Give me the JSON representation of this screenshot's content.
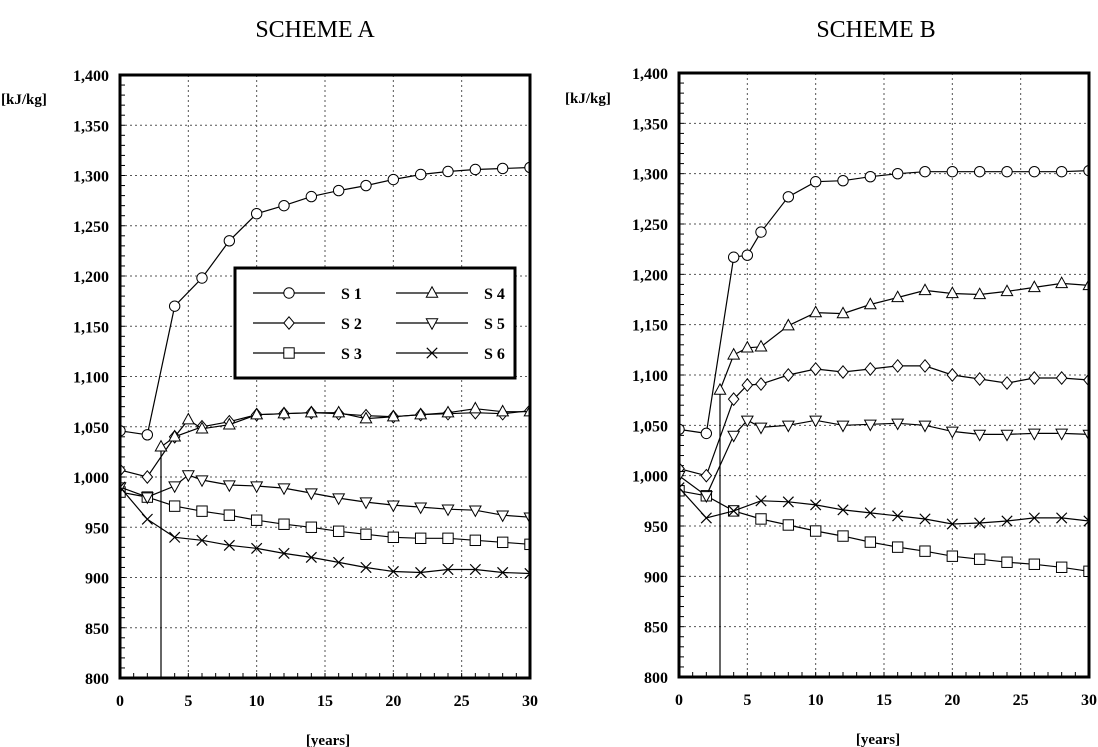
{
  "chart_data": [
    {
      "type": "line",
      "title": "SCHEME A",
      "xlabel": "[years]",
      "ylabel": "[kJ/kg]",
      "xlim": [
        0,
        30
      ],
      "ylim": [
        800,
        1400
      ],
      "xticks": [
        0,
        5,
        10,
        15,
        20,
        25,
        30
      ],
      "xtick_labels": [
        "0",
        "5",
        "10",
        "15",
        "20",
        "25",
        "30"
      ],
      "yticks": [
        800,
        850,
        900,
        950,
        1000,
        1050,
        1100,
        1150,
        1200,
        1250,
        1300,
        1350,
        1400
      ],
      "ytick_labels": [
        "800",
        "850",
        "900",
        "950",
        "1,000",
        "1,050",
        "1,100",
        "1,150",
        "1,200",
        "1,250",
        "1,300",
        "1,350",
        "1,400"
      ],
      "grid": true,
      "legend": {
        "show": true,
        "placement": "center-upper",
        "columns": 2
      },
      "series": [
        {
          "name": "S 1",
          "marker": "circle",
          "points": [
            [
              0,
              1046
            ],
            [
              2,
              1042
            ],
            [
              4,
              1170
            ],
            [
              6,
              1198
            ],
            [
              8,
              1235
            ],
            [
              10,
              1262
            ],
            [
              12,
              1270
            ],
            [
              14,
              1279
            ],
            [
              16,
              1285
            ],
            [
              18,
              1290
            ],
            [
              20,
              1296
            ],
            [
              22,
              1301
            ],
            [
              24,
              1304
            ],
            [
              26,
              1306
            ],
            [
              28,
              1307
            ],
            [
              30,
              1308
            ]
          ]
        },
        {
          "name": "S 2",
          "marker": "diamond",
          "points": [
            [
              0,
              1007
            ],
            [
              2,
              1000
            ],
            [
              4,
              1040
            ],
            [
              6,
              1050
            ],
            [
              8,
              1055
            ],
            [
              10,
              1062
            ],
            [
              12,
              1063
            ],
            [
              14,
              1064
            ],
            [
              16,
              1063
            ],
            [
              18,
              1061
            ],
            [
              20,
              1060
            ],
            [
              22,
              1062
            ],
            [
              24,
              1063
            ],
            [
              26,
              1064
            ],
            [
              28,
              1063
            ],
            [
              30,
              1066
            ]
          ]
        },
        {
          "name": "S 3",
          "marker": "square",
          "points": [
            [
              0,
              985
            ],
            [
              2,
              980
            ],
            [
              4,
              971
            ],
            [
              6,
              966
            ],
            [
              8,
              962
            ],
            [
              10,
              957
            ],
            [
              12,
              953
            ],
            [
              14,
              950
            ],
            [
              16,
              946
            ],
            [
              18,
              943
            ],
            [
              20,
              940
            ],
            [
              22,
              939
            ],
            [
              24,
              939
            ],
            [
              26,
              937
            ],
            [
              28,
              935
            ],
            [
              30,
              933
            ]
          ]
        },
        {
          "name": "S 4",
          "marker": "triangle-up",
          "points": [
            [
              3,
              800
            ],
            [
              3,
              1030
            ],
            [
              4,
              1040
            ],
            [
              5,
              1057
            ],
            [
              6,
              1048
            ],
            [
              8,
              1052
            ],
            [
              10,
              1062
            ],
            [
              12,
              1063
            ],
            [
              14,
              1064
            ],
            [
              16,
              1064
            ],
            [
              18,
              1058
            ],
            [
              20,
              1060
            ],
            [
              22,
              1062
            ],
            [
              24,
              1064
            ],
            [
              26,
              1068
            ],
            [
              28,
              1065
            ],
            [
              30,
              1065
            ]
          ]
        },
        {
          "name": "S 5",
          "marker": "triangle-down",
          "points": [
            [
              0,
              990
            ],
            [
              2,
              980
            ],
            [
              4,
              991
            ],
            [
              5,
              1002
            ],
            [
              6,
              997
            ],
            [
              8,
              992
            ],
            [
              10,
              991
            ],
            [
              12,
              989
            ],
            [
              14,
              984
            ],
            [
              16,
              979
            ],
            [
              18,
              975
            ],
            [
              20,
              972
            ],
            [
              22,
              970
            ],
            [
              24,
              968
            ],
            [
              26,
              967
            ],
            [
              28,
              962
            ],
            [
              30,
              960
            ]
          ]
        },
        {
          "name": "S 6",
          "marker": "cross",
          "points": [
            [
              0,
              990
            ],
            [
              2,
              958
            ],
            [
              4,
              940
            ],
            [
              6,
              937
            ],
            [
              8,
              932
            ],
            [
              10,
              929
            ],
            [
              12,
              924
            ],
            [
              14,
              920
            ],
            [
              16,
              915
            ],
            [
              18,
              910
            ],
            [
              20,
              906
            ],
            [
              22,
              905
            ],
            [
              24,
              908
            ],
            [
              26,
              908
            ],
            [
              28,
              905
            ],
            [
              30,
              904
            ]
          ]
        }
      ]
    },
    {
      "type": "line",
      "title": "SCHEME B",
      "xlabel": "[years]",
      "ylabel": "[kJ/kg]",
      "xlim": [
        0,
        30
      ],
      "ylim": [
        800,
        1400
      ],
      "xticks": [
        0,
        5,
        10,
        15,
        20,
        25,
        30
      ],
      "xtick_labels": [
        "0",
        "5",
        "10",
        "15",
        "20",
        "25",
        "30"
      ],
      "yticks": [
        800,
        850,
        900,
        950,
        1000,
        1050,
        1100,
        1150,
        1200,
        1250,
        1300,
        1350,
        1400
      ],
      "ytick_labels": [
        "800",
        "850",
        "900",
        "950",
        "1,000",
        "1,050",
        "1,100",
        "1,150",
        "1,200",
        "1,250",
        "1,300",
        "1,350",
        "1,400"
      ],
      "grid": true,
      "legend": {
        "show": false
      },
      "series": [
        {
          "name": "S 1",
          "marker": "circle",
          "points": [
            [
              0,
              1046
            ],
            [
              2,
              1042
            ],
            [
              4,
              1217
            ],
            [
              5,
              1219
            ],
            [
              6,
              1242
            ],
            [
              8,
              1277
            ],
            [
              10,
              1292
            ],
            [
              12,
              1293
            ],
            [
              14,
              1297
            ],
            [
              16,
              1300
            ],
            [
              18,
              1302
            ],
            [
              20,
              1302
            ],
            [
              22,
              1302
            ],
            [
              24,
              1302
            ],
            [
              26,
              1302
            ],
            [
              28,
              1302
            ],
            [
              30,
              1303
            ]
          ]
        },
        {
          "name": "S 2",
          "marker": "diamond",
          "points": [
            [
              0,
              1007
            ],
            [
              2,
              1000
            ],
            [
              4,
              1076
            ],
            [
              5,
              1090
            ],
            [
              6,
              1091
            ],
            [
              8,
              1100
            ],
            [
              10,
              1106
            ],
            [
              12,
              1103
            ],
            [
              14,
              1106
            ],
            [
              16,
              1109
            ],
            [
              18,
              1109
            ],
            [
              20,
              1100
            ],
            [
              22,
              1096
            ],
            [
              24,
              1092
            ],
            [
              26,
              1097
            ],
            [
              28,
              1097
            ],
            [
              30,
              1095
            ]
          ]
        },
        {
          "name": "S 3",
          "marker": "square",
          "points": [
            [
              0,
              985
            ],
            [
              2,
              980
            ],
            [
              4,
              965
            ],
            [
              6,
              957
            ],
            [
              8,
              951
            ],
            [
              10,
              945
            ],
            [
              12,
              940
            ],
            [
              14,
              934
            ],
            [
              16,
              929
            ],
            [
              18,
              925
            ],
            [
              20,
              920
            ],
            [
              22,
              917
            ],
            [
              24,
              914
            ],
            [
              26,
              912
            ],
            [
              28,
              909
            ],
            [
              30,
              905
            ]
          ]
        },
        {
          "name": "S 4",
          "marker": "triangle-up",
          "points": [
            [
              3,
              800
            ],
            [
              3,
              1085
            ],
            [
              4,
              1120
            ],
            [
              5,
              1127
            ],
            [
              6,
              1128
            ],
            [
              8,
              1149
            ],
            [
              10,
              1162
            ],
            [
              12,
              1161
            ],
            [
              14,
              1170
            ],
            [
              16,
              1177
            ],
            [
              18,
              1184
            ],
            [
              20,
              1181
            ],
            [
              22,
              1180
            ],
            [
              24,
              1183
            ],
            [
              26,
              1187
            ],
            [
              28,
              1191
            ],
            [
              30,
              1189
            ]
          ]
        },
        {
          "name": "S 5",
          "marker": "triangle-down",
          "points": [
            [
              0,
              1000
            ],
            [
              2,
              980
            ],
            [
              4,
              1040
            ],
            [
              5,
              1055
            ],
            [
              6,
              1048
            ],
            [
              8,
              1050
            ],
            [
              10,
              1055
            ],
            [
              12,
              1050
            ],
            [
              14,
              1051
            ],
            [
              16,
              1052
            ],
            [
              18,
              1050
            ],
            [
              20,
              1044
            ],
            [
              22,
              1041
            ],
            [
              24,
              1041
            ],
            [
              26,
              1042
            ],
            [
              28,
              1042
            ],
            [
              30,
              1041
            ]
          ]
        },
        {
          "name": "S 6",
          "marker": "cross",
          "points": [
            [
              0,
              988
            ],
            [
              2,
              958
            ],
            [
              4,
              965
            ],
            [
              6,
              975
            ],
            [
              8,
              974
            ],
            [
              10,
              971
            ],
            [
              12,
              966
            ],
            [
              14,
              963
            ],
            [
              16,
              960
            ],
            [
              18,
              957
            ],
            [
              20,
              952
            ],
            [
              22,
              953
            ],
            [
              24,
              955
            ],
            [
              26,
              958
            ],
            [
              28,
              958
            ],
            [
              30,
              955
            ]
          ]
        }
      ]
    }
  ]
}
